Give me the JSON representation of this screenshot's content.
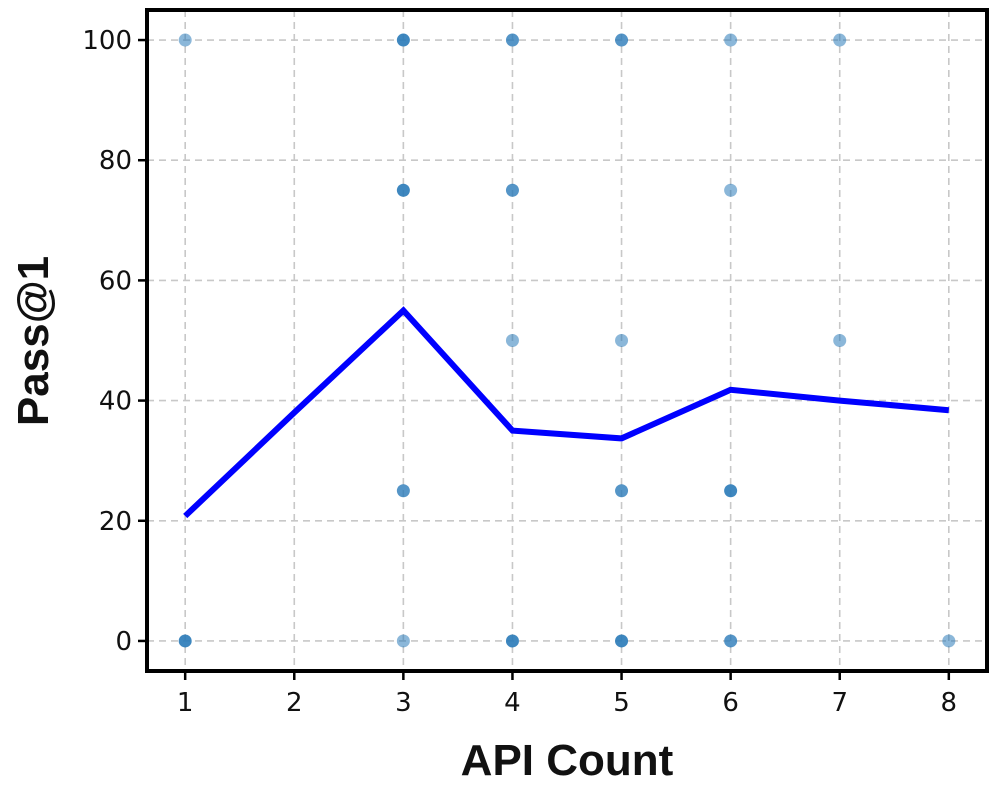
{
  "chart_data": {
    "type": "scatter",
    "title": "",
    "xlabel": "API Count",
    "ylabel": "Pass@1",
    "xlim": [
      0.65,
      8.35
    ],
    "ylim": [
      -5,
      105
    ],
    "grid": true,
    "x_ticks": [
      1,
      2,
      3,
      4,
      5,
      6,
      7,
      8
    ],
    "y_ticks": [
      0,
      20,
      40,
      60,
      80,
      100
    ],
    "colors": {
      "points": "#2b7bb9",
      "line": "#0000ff",
      "grid": "#c8c8c8",
      "frame": "#000000"
    },
    "series": [
      {
        "kind": "scatter",
        "points": [
          {
            "x": 1,
            "y": 100,
            "count": 1
          },
          {
            "x": 1,
            "y": 0,
            "count": 3
          },
          {
            "x": 3,
            "y": 100,
            "count": 3
          },
          {
            "x": 3,
            "y": 75,
            "count": 3
          },
          {
            "x": 3,
            "y": 25,
            "count": 2
          },
          {
            "x": 3,
            "y": 0,
            "count": 1
          },
          {
            "x": 4,
            "y": 100,
            "count": 2
          },
          {
            "x": 4,
            "y": 75,
            "count": 2
          },
          {
            "x": 4,
            "y": 50,
            "count": 1
          },
          {
            "x": 4,
            "y": 0,
            "count": 3
          },
          {
            "x": 5,
            "y": 100,
            "count": 2
          },
          {
            "x": 5,
            "y": 50,
            "count": 1
          },
          {
            "x": 5,
            "y": 25,
            "count": 2
          },
          {
            "x": 5,
            "y": 0,
            "count": 3
          },
          {
            "x": 6,
            "y": 100,
            "count": 1
          },
          {
            "x": 6,
            "y": 75,
            "count": 1
          },
          {
            "x": 6,
            "y": 25,
            "count": 3
          },
          {
            "x": 6,
            "y": 0,
            "count": 2
          },
          {
            "x": 7,
            "y": 100,
            "count": 1
          },
          {
            "x": 7,
            "y": 50,
            "count": 1
          },
          {
            "x": 8,
            "y": 0,
            "count": 1
          }
        ]
      },
      {
        "kind": "line",
        "x": [
          1,
          2,
          3,
          4,
          5,
          6,
          7,
          8
        ],
        "values": [
          20.8,
          38.0,
          55.0,
          35.0,
          33.7,
          41.8,
          40.0,
          38.4
        ]
      }
    ]
  }
}
